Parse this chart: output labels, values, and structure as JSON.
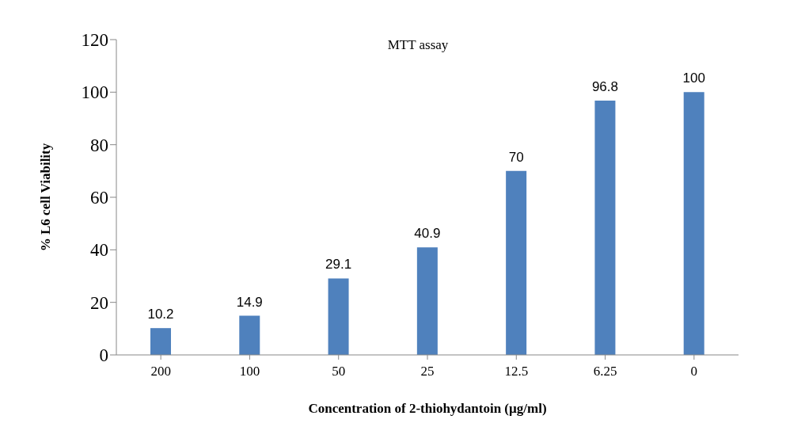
{
  "chart_data": {
    "type": "bar",
    "title": "MTT assay",
    "xlabel": "Concentration of 2-thiohydantoin (µg/ml)",
    "ylabel": "% L6 cell Viability",
    "categories": [
      "200",
      "100",
      "50",
      "25",
      "12.5",
      "6.25",
      "0"
    ],
    "values": [
      10.2,
      14.9,
      29.1,
      40.9,
      70,
      96.8,
      100
    ],
    "color": "#4f81bd",
    "ylim": [
      0,
      120
    ],
    "yticks": [
      0,
      20,
      40,
      60,
      80,
      100,
      120
    ],
    "grid": false,
    "data_labels": true
  }
}
